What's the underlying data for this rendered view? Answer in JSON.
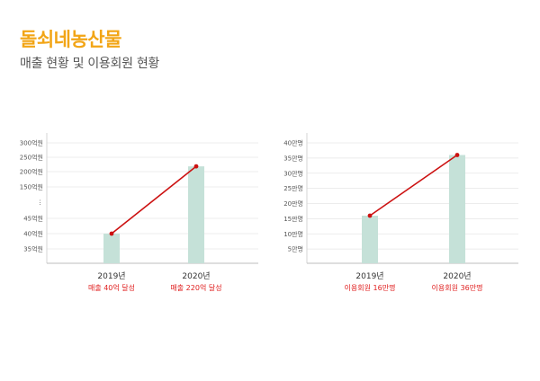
{
  "header": {
    "title": "돌쇠네농산물",
    "subtitle": "매출 현황 및 이용회원 현황"
  },
  "chart_data": [
    {
      "type": "bar",
      "categories": [
        "2019년",
        "2020년"
      ],
      "annotations": [
        "매출 40억 달성",
        "매출 220억 달성"
      ],
      "values": [
        40,
        220
      ],
      "y_ticks": [
        "300억원",
        "250억원",
        "200억원",
        "150억원",
        "⋮",
        "45억원",
        "40억원",
        "35억원"
      ],
      "series_line": true,
      "grid": true,
      "colors": {
        "bar": "#c5e1d8",
        "line": "#cc1111",
        "grid": "#e6e6e6"
      }
    },
    {
      "type": "bar",
      "categories": [
        "2019년",
        "2020년"
      ],
      "annotations": [
        "이용회원 16만명",
        "이용회원 36만명"
      ],
      "values": [
        16,
        36
      ],
      "y_ticks": [
        "40만명",
        "35만명",
        "30만명",
        "25만명",
        "20만명",
        "15만명",
        "10만명",
        "5만명"
      ],
      "ylim": [
        0,
        40
      ],
      "series_line": true,
      "grid": true,
      "colors": {
        "bar": "#c5e1d8",
        "line": "#cc1111",
        "grid": "#e6e6e6"
      }
    }
  ]
}
